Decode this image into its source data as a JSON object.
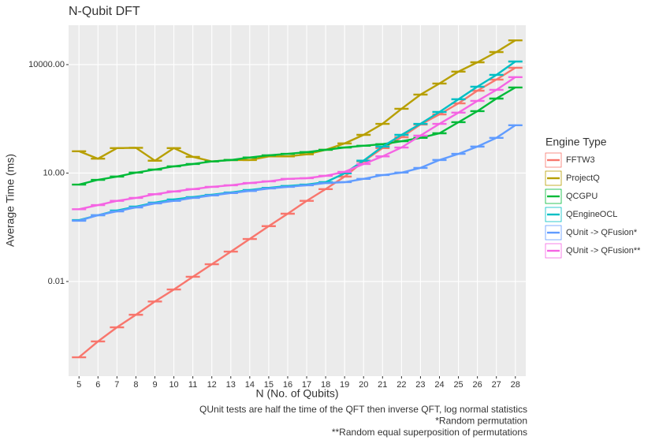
{
  "chart_data": {
    "type": "line",
    "title": "N-Qubit DFT",
    "x_label": "N (No. of Qubits)",
    "y_label": "Average Time (ms)",
    "legend_title": "Engine Type",
    "legend_position": "right",
    "notes": [
      "QUnit tests are half the time of the QFT then inverse QFT, log normal statistics",
      "*Random permutation",
      "**Random equal superposition of permutations"
    ],
    "log_y": true,
    "grid": true,
    "x": [
      5,
      6,
      7,
      8,
      9,
      10,
      11,
      12,
      13,
      14,
      15,
      16,
      17,
      18,
      19,
      20,
      21,
      22,
      23,
      24,
      25,
      26,
      27,
      28
    ],
    "xlim": [
      4.45,
      28.55
    ],
    "xticks": [
      5,
      6,
      7,
      8,
      9,
      10,
      11,
      12,
      13,
      14,
      15,
      16,
      17,
      18,
      19,
      20,
      21,
      22,
      23,
      24,
      25,
      26,
      27,
      28
    ],
    "ylim": [
      2.4e-05,
      123000
    ],
    "yticks": [
      {
        "value": 0.01,
        "label": "0.01"
      },
      {
        "value": 10,
        "label": "10.00"
      },
      {
        "value": 10000,
        "label": "10000.00"
      }
    ],
    "series": [
      {
        "name": "FFTW3",
        "color": "#F8766D",
        "values": [
          8e-05,
          0.00022,
          0.00054,
          0.0012,
          0.0028,
          0.006,
          0.0135,
          0.03,
          0.067,
          0.15,
          0.34,
          0.75,
          1.7,
          3.6,
          8.0,
          21,
          49,
          98,
          220,
          420,
          850,
          1900,
          3850,
          8200
        ]
      },
      {
        "name": "ProjectQ",
        "color": "#B79F00",
        "values": [
          40,
          25,
          49,
          50,
          22,
          49,
          28,
          21,
          23,
          23,
          29,
          29,
          33,
          44,
          66,
          114,
          230,
          600,
          1480,
          3000,
          6400,
          11600,
          22300,
          47000
        ]
      },
      {
        "name": "QCGPU",
        "color": "#00BA38",
        "values": [
          4.8,
          6.5,
          8.0,
          10.3,
          12.5,
          15.3,
          17.8,
          21,
          23,
          27,
          31,
          34,
          38,
          44,
          51,
          57,
          63,
          76,
          94,
          126,
          255,
          516,
          1150,
          2330
        ]
      },
      {
        "name": "QEngineOCL",
        "color": "#00BFC4",
        "values": [
          0.5,
          0.68,
          0.92,
          1.18,
          1.52,
          1.86,
          2.16,
          2.5,
          2.9,
          3.4,
          3.9,
          4.4,
          4.8,
          5.6,
          9.8,
          22,
          54,
          114,
          230,
          490,
          1100,
          2450,
          5200,
          12200
        ]
      },
      {
        "name": "QUnit -> QFusion*",
        "color": "#619CFF",
        "values": [
          0.48,
          0.68,
          0.87,
          1.12,
          1.45,
          1.7,
          2.05,
          2.4,
          2.8,
          3.2,
          3.75,
          4.15,
          4.6,
          5.3,
          5.6,
          6.9,
          8.8,
          10.3,
          13.9,
          23,
          34,
          54,
          94,
          210
        ]
      },
      {
        "name": "QUnit -> QFusion**",
        "color": "#F564E3",
        "values": [
          1.0,
          1.3,
          1.7,
          2.05,
          2.6,
          3.1,
          3.6,
          4.15,
          4.6,
          5.3,
          5.9,
          6.9,
          7.2,
          8.4,
          10.8,
          17.8,
          29,
          51,
          109,
          230,
          470,
          990,
          2000,
          4500
        ]
      }
    ]
  }
}
